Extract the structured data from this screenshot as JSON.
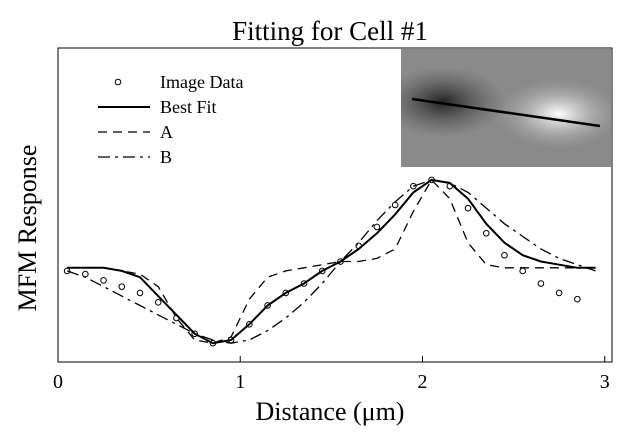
{
  "chart_data": {
    "type": "line",
    "title": "Fitting for Cell #1",
    "x_label": "Distance (μm)",
    "y_label": "MFM Response",
    "xlim": [
      0,
      3.04
    ],
    "xticks": [
      0,
      1,
      2,
      3
    ],
    "ylim": [
      0,
      1
    ],
    "legend": "upper left",
    "series": [
      {
        "name": "Image Data",
        "color": "#000000",
        "style": "markers",
        "x": [
          0.05,
          0.15,
          0.25,
          0.35,
          0.45,
          0.55,
          0.65,
          0.75,
          0.85,
          0.95,
          1.05,
          1.15,
          1.25,
          1.35,
          1.45,
          1.55,
          1.65,
          1.75,
          1.85,
          1.95,
          2.05,
          2.15,
          2.25,
          2.35,
          2.45,
          2.55,
          2.65,
          2.75,
          2.85
        ],
        "values": [
          0.29,
          0.28,
          0.26,
          0.24,
          0.22,
          0.19,
          0.14,
          0.09,
          0.06,
          0.07,
          0.12,
          0.18,
          0.22,
          0.25,
          0.29,
          0.32,
          0.37,
          0.43,
          0.5,
          0.56,
          0.58,
          0.56,
          0.49,
          0.41,
          0.34,
          0.29,
          0.25,
          0.22,
          0.2
        ]
      },
      {
        "name": "Best Fit",
        "color": "#000000",
        "style": "solid",
        "x": [
          0.05,
          0.15,
          0.25,
          0.35,
          0.45,
          0.55,
          0.65,
          0.75,
          0.85,
          0.95,
          1.05,
          1.15,
          1.25,
          1.35,
          1.45,
          1.55,
          1.65,
          1.75,
          1.85,
          1.95,
          2.05,
          2.15,
          2.25,
          2.35,
          2.45,
          2.55,
          2.65,
          2.75,
          2.85,
          2.95
        ],
        "values": [
          0.3,
          0.3,
          0.3,
          0.29,
          0.27,
          0.21,
          0.15,
          0.09,
          0.06,
          0.07,
          0.12,
          0.18,
          0.22,
          0.25,
          0.29,
          0.32,
          0.36,
          0.41,
          0.47,
          0.54,
          0.58,
          0.57,
          0.52,
          0.44,
          0.38,
          0.34,
          0.32,
          0.31,
          0.3,
          0.3
        ]
      },
      {
        "name": "A",
        "color": "#000000",
        "style": "dashed",
        "x": [
          0.05,
          0.15,
          0.25,
          0.35,
          0.45,
          0.55,
          0.65,
          0.75,
          0.85,
          0.95,
          1.05,
          1.15,
          1.25,
          1.35,
          1.45,
          1.55,
          1.65,
          1.75,
          1.85,
          1.95,
          2.05,
          2.15,
          2.25,
          2.35,
          2.45,
          2.55,
          2.65,
          2.75,
          2.85,
          2.95
        ],
        "values": [
          0.3,
          0.3,
          0.3,
          0.29,
          0.28,
          0.24,
          0.14,
          0.07,
          0.06,
          0.08,
          0.2,
          0.27,
          0.29,
          0.3,
          0.31,
          0.32,
          0.32,
          0.33,
          0.36,
          0.48,
          0.58,
          0.52,
          0.38,
          0.31,
          0.3,
          0.3,
          0.3,
          0.3,
          0.3,
          0.3
        ]
      },
      {
        "name": "B",
        "color": "#000000",
        "style": "dashdot",
        "x": [
          0.05,
          0.15,
          0.25,
          0.35,
          0.45,
          0.55,
          0.65,
          0.75,
          0.85,
          0.95,
          1.05,
          1.15,
          1.25,
          1.35,
          1.45,
          1.55,
          1.65,
          1.75,
          1.85,
          1.95,
          2.05,
          2.15,
          2.25,
          2.35,
          2.45,
          2.55,
          2.65,
          2.75,
          2.85,
          2.95
        ],
        "values": [
          0.29,
          0.27,
          0.24,
          0.21,
          0.18,
          0.15,
          0.12,
          0.09,
          0.07,
          0.06,
          0.07,
          0.1,
          0.14,
          0.19,
          0.25,
          0.32,
          0.38,
          0.45,
          0.51,
          0.56,
          0.58,
          0.57,
          0.54,
          0.49,
          0.44,
          0.4,
          0.36,
          0.33,
          0.31,
          0.29
        ]
      }
    ]
  }
}
